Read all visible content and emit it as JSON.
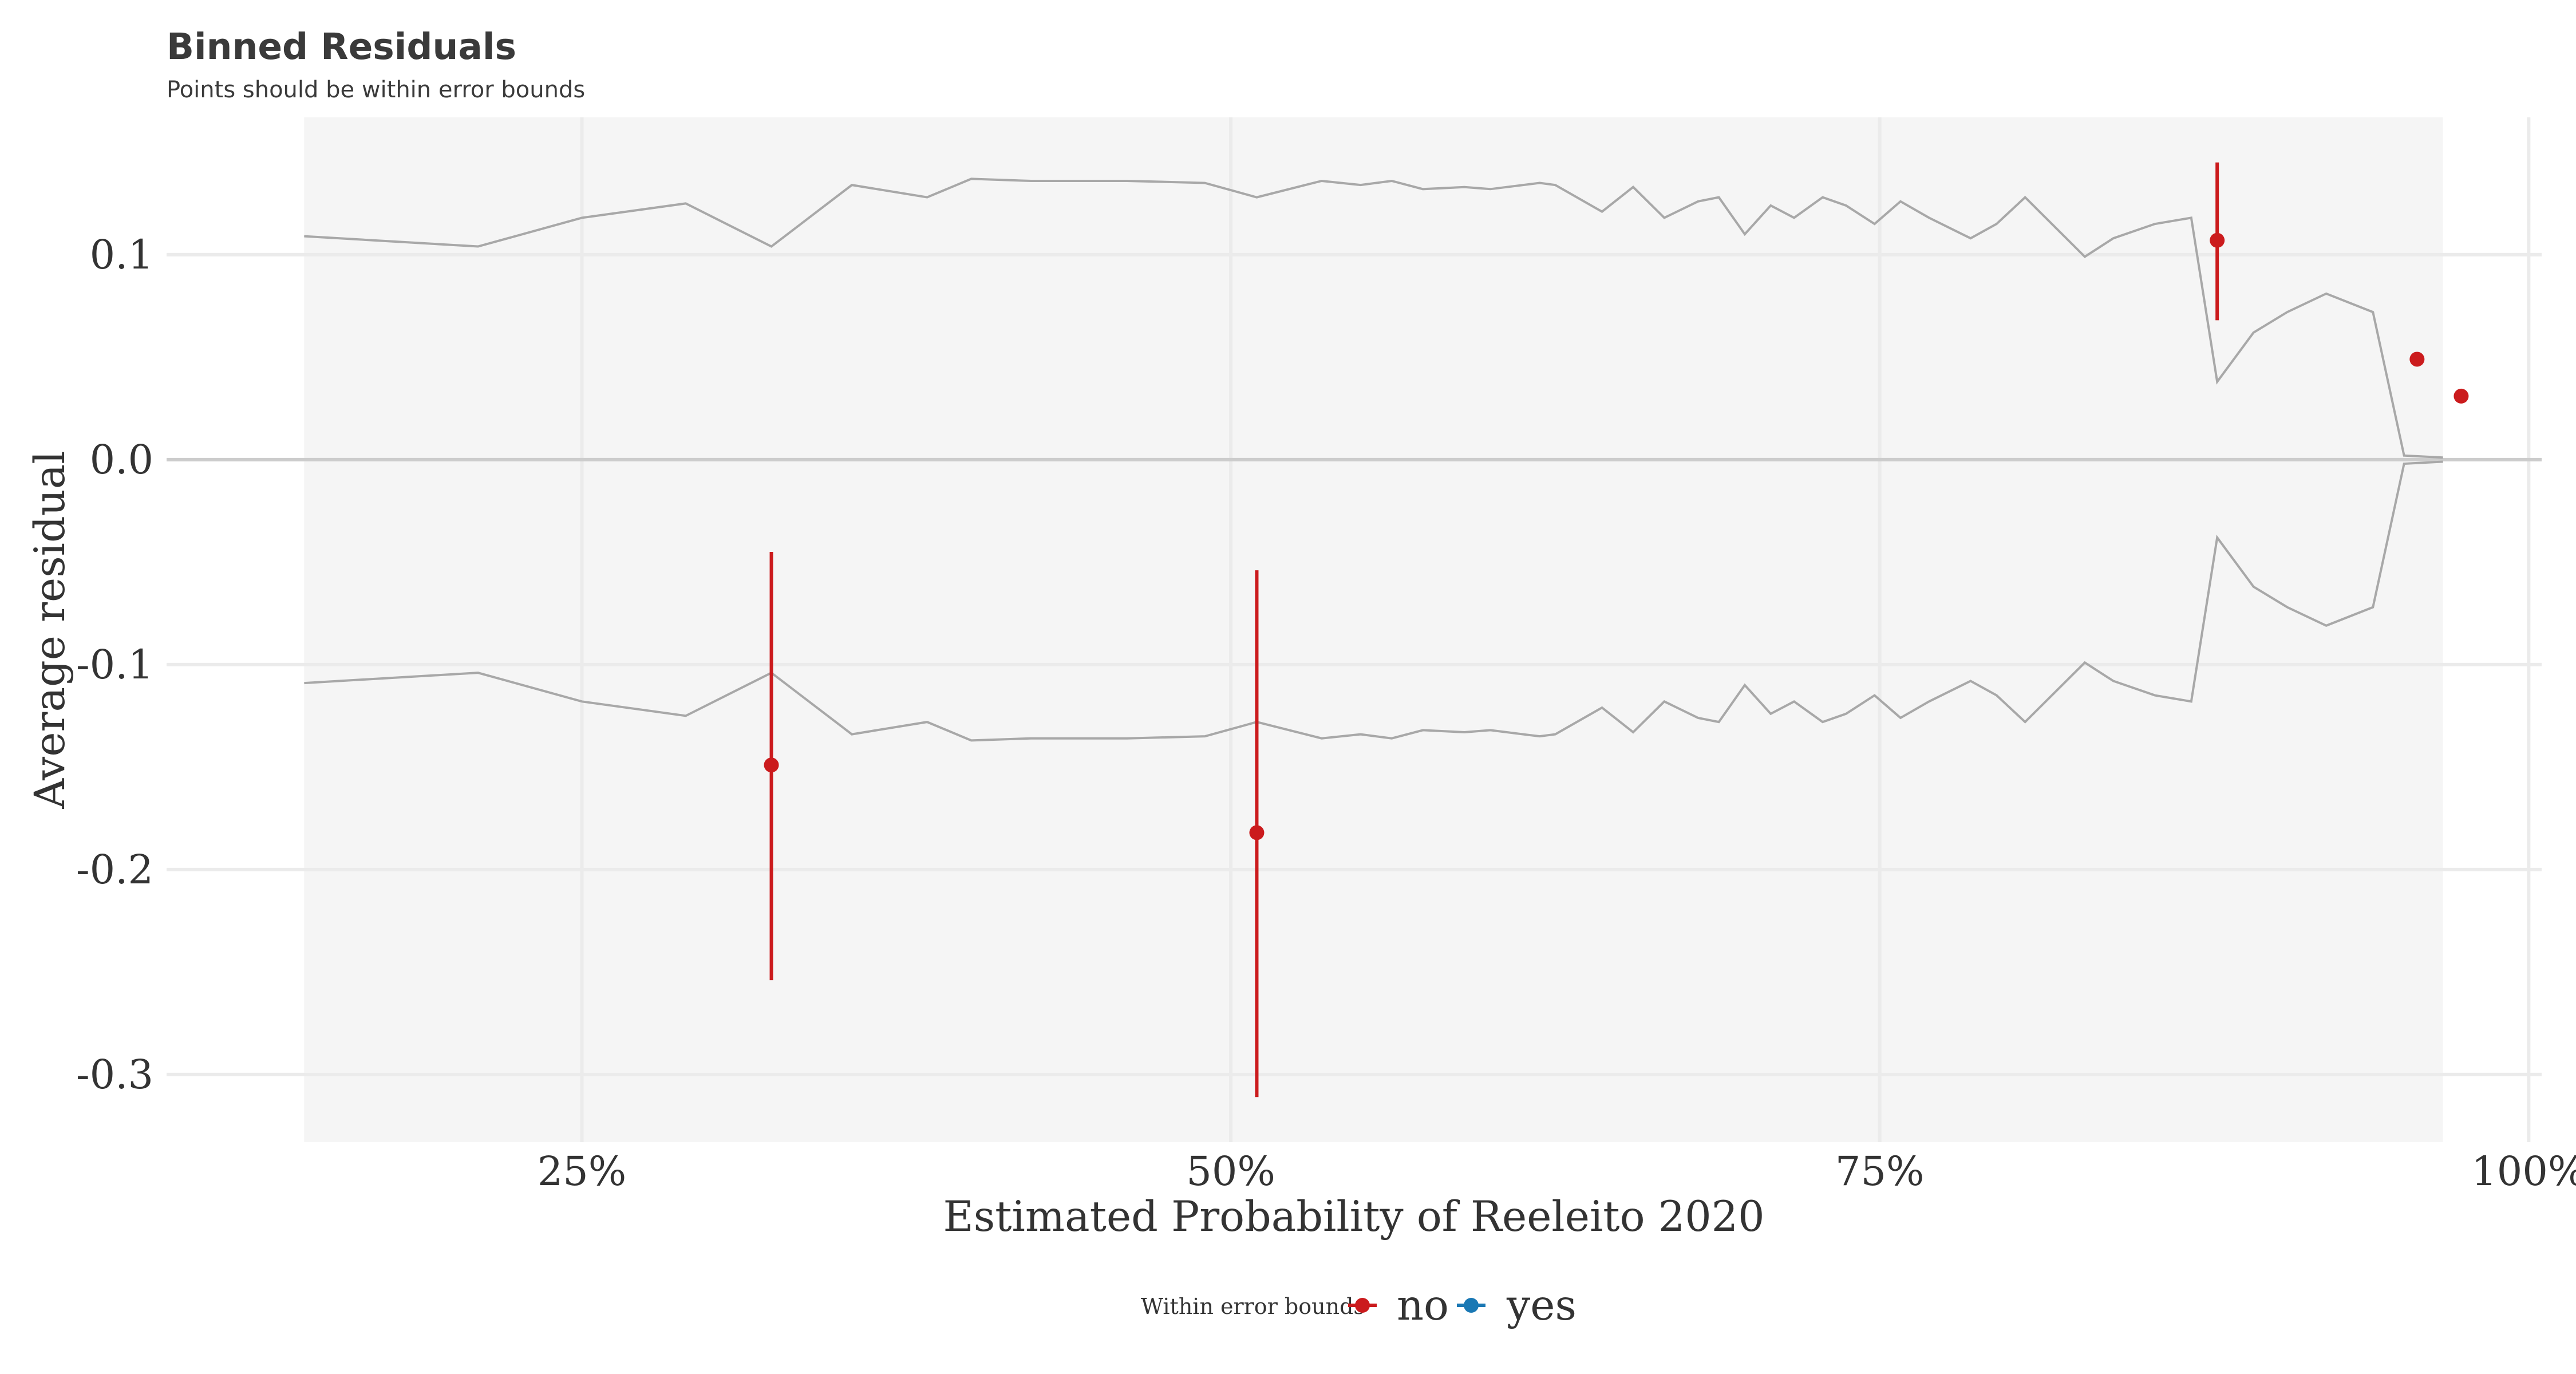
{
  "chart_data": {
    "type": "scatter",
    "title": "Binned Residuals",
    "subtitle": "Points should be within error bounds",
    "xlabel": "Estimated Probability of Reeleito 2020",
    "ylabel": "Average residual",
    "xlim": [
      0.09,
      1.005
    ],
    "ylim": [
      -0.333,
      0.167
    ],
    "x_ticks": [
      0.25,
      0.5,
      0.75,
      1.0
    ],
    "x_tick_labels": [
      "25%",
      "50%",
      "75%",
      "100%"
    ],
    "y_ticks": [
      0.1,
      0.0,
      -0.1,
      -0.2,
      -0.3
    ],
    "y_tick_labels": [
      "0.1",
      "0.0",
      "-0.1",
      "-0.2",
      "-0.3"
    ],
    "grid": true,
    "bounds_band": {
      "x_range": [
        0.143,
        0.967
      ],
      "x": [
        0.143,
        0.21,
        0.25,
        0.29,
        0.323,
        0.354,
        0.383,
        0.4,
        0.423,
        0.46,
        0.49,
        0.51,
        0.535,
        0.55,
        0.562,
        0.574,
        0.59,
        0.6,
        0.619,
        0.625,
        0.643,
        0.655,
        0.667,
        0.68,
        0.688,
        0.698,
        0.708,
        0.717,
        0.728,
        0.737,
        0.748,
        0.758,
        0.769,
        0.785,
        0.795,
        0.806,
        0.829,
        0.84,
        0.856,
        0.87,
        0.88,
        0.894,
        0.907,
        0.922,
        0.94,
        0.952,
        0.967
      ],
      "upper": [
        0.109,
        0.104,
        0.118,
        0.125,
        0.104,
        0.134,
        0.128,
        0.137,
        0.136,
        0.136,
        0.135,
        0.128,
        0.136,
        0.134,
        0.136,
        0.132,
        0.133,
        0.132,
        0.135,
        0.134,
        0.121,
        0.133,
        0.118,
        0.126,
        0.128,
        0.11,
        0.124,
        0.118,
        0.128,
        0.124,
        0.115,
        0.126,
        0.118,
        0.108,
        0.115,
        0.128,
        0.099,
        0.108,
        0.115,
        0.118,
        0.038,
        0.062,
        0.072,
        0.081,
        0.072,
        0.002,
        0.001
      ],
      "lower": [
        -0.109,
        -0.104,
        -0.118,
        -0.125,
        -0.104,
        -0.134,
        -0.128,
        -0.137,
        -0.136,
        -0.136,
        -0.135,
        -0.128,
        -0.136,
        -0.134,
        -0.136,
        -0.132,
        -0.133,
        -0.132,
        -0.135,
        -0.134,
        -0.121,
        -0.133,
        -0.118,
        -0.126,
        -0.128,
        -0.11,
        -0.124,
        -0.118,
        -0.128,
        -0.124,
        -0.115,
        -0.126,
        -0.118,
        -0.108,
        -0.115,
        -0.128,
        -0.099,
        -0.108,
        -0.115,
        -0.118,
        -0.038,
        -0.062,
        -0.072,
        -0.081,
        -0.072,
        -0.002,
        -0.001
      ]
    },
    "points": [
      {
        "x": 0.323,
        "y": -0.149,
        "ymin": -0.254,
        "ymax": -0.045,
        "group": "no"
      },
      {
        "x": 0.51,
        "y": -0.182,
        "ymin": -0.311,
        "ymax": -0.054,
        "group": "no"
      },
      {
        "x": 0.88,
        "y": 0.107,
        "ymin": 0.068,
        "ymax": 0.145,
        "group": "no"
      },
      {
        "x": 0.957,
        "y": 0.049,
        "group": "no"
      },
      {
        "x": 0.974,
        "y": 0.031,
        "group": "no"
      }
    ],
    "legend": {
      "title": "Within error bounds",
      "position": "bottom",
      "items": [
        {
          "label": "no",
          "color": "#cb1b1d"
        },
        {
          "label": "yes",
          "color": "#1a78b4"
        }
      ]
    },
    "colors": {
      "panel_background": "#f5f5f5",
      "grid": "#ebebeb",
      "band_line": "#a8a8a8",
      "zero_line": "#cccccc",
      "no": "#cb1b1d",
      "yes": "#1a78b4"
    }
  }
}
